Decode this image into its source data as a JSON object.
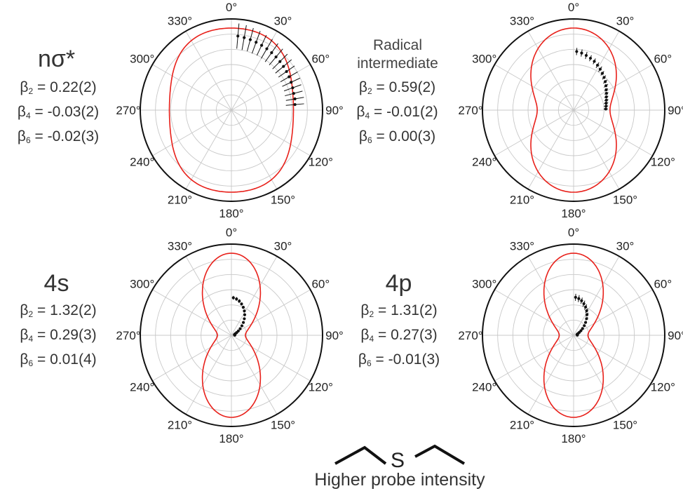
{
  "figure": {
    "footer": "Higher probe intensity",
    "molecule_atom": "S"
  },
  "panels": [
    {
      "title": "nσ*",
      "title_size": "big",
      "betas": [
        {
          "sym": "β",
          "sub": "2",
          "val": " = 0.22(2)"
        },
        {
          "sym": "β",
          "sub": "4",
          "val": " = -0.03(2)"
        },
        {
          "sym": "β",
          "sub": "6",
          "val": " = -0.02(3)"
        }
      ]
    },
    {
      "title": "Radical intermediate",
      "title_lines": [
        "Radical",
        "intermediate"
      ],
      "title_size": "small",
      "betas": [
        {
          "sym": "β",
          "sub": "2",
          "val": " = 0.59(2)"
        },
        {
          "sym": "β",
          "sub": "4",
          "val": " = -0.01(2)"
        },
        {
          "sym": "β",
          "sub": "6",
          "val": " = 0.00(3)"
        }
      ]
    },
    {
      "title": "4s",
      "title_size": "big",
      "betas": [
        {
          "sym": "β",
          "sub": "2",
          "val": " = 1.32(2)"
        },
        {
          "sym": "β",
          "sub": "4",
          "val": " = 0.29(3)"
        },
        {
          "sym": "β",
          "sub": "6",
          "val": " = 0.01(4)"
        }
      ]
    },
    {
      "title": "4p",
      "title_size": "big",
      "betas": [
        {
          "sym": "β",
          "sub": "2",
          "val": " = 1.31(2)"
        },
        {
          "sym": "β",
          "sub": "4",
          "val": " = 0.27(3)"
        },
        {
          "sym": "β",
          "sub": "6",
          "val": " = -0.01(3)"
        }
      ]
    }
  ],
  "chart_data": [
    {
      "type": "polar-line",
      "angle_ticks": [
        "0°",
        "30°",
        "60°",
        "90°",
        "120°",
        "150°",
        "180°",
        "210°",
        "240°",
        "270°",
        "300°",
        "330°"
      ],
      "theta_unit": "deg",
      "rings": 6,
      "fit": {
        "beta2": 0.22,
        "beta4": -0.03,
        "beta6": -0.02,
        "color": "#e8201a"
      },
      "points": [
        {
          "theta": 5,
          "r": 1.06,
          "err": 0.18
        },
        {
          "theta": 10,
          "r": 1.05,
          "err": 0.18
        },
        {
          "theta": 15,
          "r": 1.04,
          "err": 0.17
        },
        {
          "theta": 20,
          "r": 1.03,
          "err": 0.17
        },
        {
          "theta": 25,
          "r": 1.02,
          "err": 0.16
        },
        {
          "theta": 30,
          "r": 1.01,
          "err": 0.16
        },
        {
          "theta": 35,
          "r": 1.0,
          "err": 0.16
        },
        {
          "theta": 40,
          "r": 0.99,
          "err": 0.15
        },
        {
          "theta": 45,
          "r": 0.98,
          "err": 0.15
        },
        {
          "theta": 50,
          "r": 0.97,
          "err": 0.15
        },
        {
          "theta": 55,
          "r": 0.96,
          "err": 0.14
        },
        {
          "theta": 60,
          "r": 0.95,
          "err": 0.14
        },
        {
          "theta": 65,
          "r": 0.94,
          "err": 0.14
        },
        {
          "theta": 70,
          "r": 0.93,
          "err": 0.13
        },
        {
          "theta": 75,
          "r": 0.92,
          "err": 0.13
        },
        {
          "theta": 80,
          "r": 0.92,
          "err": 0.13
        },
        {
          "theta": 85,
          "r": 0.91,
          "err": 0.13
        }
      ]
    },
    {
      "type": "polar-line",
      "angle_ticks": [
        "0°",
        "30°",
        "60°",
        "90°",
        "120°",
        "150°",
        "180°",
        "210°",
        "240°",
        "270°",
        "300°",
        "330°"
      ],
      "theta_unit": "deg",
      "rings": 6,
      "fit": {
        "beta2": 0.59,
        "beta4": -0.01,
        "beta6": 0.0,
        "color": "#e8201a"
      },
      "points": [
        {
          "theta": 3,
          "r": 1.13,
          "err": 0.07
        },
        {
          "theta": 8,
          "r": 1.11,
          "err": 0.07
        },
        {
          "theta": 13,
          "r": 1.08,
          "err": 0.07
        },
        {
          "theta": 18,
          "r": 1.05,
          "err": 0.06
        },
        {
          "theta": 23,
          "r": 1.02,
          "err": 0.06
        },
        {
          "theta": 28,
          "r": 0.98,
          "err": 0.06
        },
        {
          "theta": 33,
          "r": 0.94,
          "err": 0.06
        },
        {
          "theta": 38,
          "r": 0.9,
          "err": 0.05
        },
        {
          "theta": 43,
          "r": 0.86,
          "err": 0.05
        },
        {
          "theta": 48,
          "r": 0.82,
          "err": 0.05
        },
        {
          "theta": 53,
          "r": 0.78,
          "err": 0.05
        },
        {
          "theta": 58,
          "r": 0.74,
          "err": 0.04
        },
        {
          "theta": 63,
          "r": 0.71,
          "err": 0.04
        },
        {
          "theta": 68,
          "r": 0.68,
          "err": 0.04
        },
        {
          "theta": 73,
          "r": 0.66,
          "err": 0.04
        },
        {
          "theta": 78,
          "r": 0.64,
          "err": 0.04
        },
        {
          "theta": 83,
          "r": 0.63,
          "err": 0.04
        },
        {
          "theta": 88,
          "r": 0.62,
          "err": 0.04
        }
      ]
    },
    {
      "type": "polar-line",
      "angle_ticks": [
        "0°",
        "30°",
        "60°",
        "90°",
        "120°",
        "150°",
        "180°",
        "210°",
        "240°",
        "270°",
        "300°",
        "330°"
      ],
      "theta_unit": "deg",
      "rings": 6,
      "fit": {
        "beta2": 1.32,
        "beta4": 0.29,
        "beta6": 0.01,
        "color": "#e8201a"
      },
      "points": [
        {
          "theta": 3,
          "r": 1.2,
          "err": 0.06
        },
        {
          "theta": 8,
          "r": 1.17,
          "err": 0.06
        },
        {
          "theta": 13,
          "r": 1.12,
          "err": 0.06
        },
        {
          "theta": 18,
          "r": 1.05,
          "err": 0.05
        },
        {
          "theta": 23,
          "r": 0.97,
          "err": 0.05
        },
        {
          "theta": 28,
          "r": 0.88,
          "err": 0.05
        },
        {
          "theta": 33,
          "r": 0.78,
          "err": 0.04
        },
        {
          "theta": 38,
          "r": 0.67,
          "err": 0.04
        },
        {
          "theta": 43,
          "r": 0.56,
          "err": 0.03
        },
        {
          "theta": 48,
          "r": 0.45,
          "err": 0.03
        },
        {
          "theta": 53,
          "r": 0.35,
          "err": 0.02
        },
        {
          "theta": 58,
          "r": 0.26,
          "err": 0.02
        },
        {
          "theta": 63,
          "r": 0.19,
          "err": 0.01
        },
        {
          "theta": 68,
          "r": 0.14,
          "err": 0.01
        },
        {
          "theta": 73,
          "r": 0.11,
          "err": 0.01
        },
        {
          "theta": 78,
          "r": 0.1,
          "err": 0.01
        },
        {
          "theta": 83,
          "r": 0.1,
          "err": 0.01
        },
        {
          "theta": 88,
          "r": 0.11,
          "err": 0.01
        }
      ]
    },
    {
      "type": "polar-line",
      "angle_ticks": [
        "0°",
        "30°",
        "60°",
        "90°",
        "120°",
        "150°",
        "180°",
        "210°",
        "240°",
        "270°",
        "300°",
        "330°"
      ],
      "theta_unit": "deg",
      "rings": 6,
      "fit": {
        "beta2": 1.31,
        "beta4": 0.27,
        "beta6": -0.01,
        "color": "#e8201a"
      },
      "points": [
        {
          "theta": 3,
          "r": 1.19,
          "err": 0.11
        },
        {
          "theta": 8,
          "r": 1.16,
          "err": 0.11
        },
        {
          "theta": 13,
          "r": 1.11,
          "err": 0.1
        },
        {
          "theta": 18,
          "r": 1.04,
          "err": 0.1
        },
        {
          "theta": 23,
          "r": 0.96,
          "err": 0.09
        },
        {
          "theta": 28,
          "r": 0.87,
          "err": 0.08
        },
        {
          "theta": 33,
          "r": 0.77,
          "err": 0.07
        },
        {
          "theta": 38,
          "r": 0.66,
          "err": 0.06
        },
        {
          "theta": 43,
          "r": 0.55,
          "err": 0.05
        },
        {
          "theta": 48,
          "r": 0.45,
          "err": 0.04
        },
        {
          "theta": 53,
          "r": 0.35,
          "err": 0.03
        },
        {
          "theta": 58,
          "r": 0.27,
          "err": 0.03
        },
        {
          "theta": 63,
          "r": 0.2,
          "err": 0.02
        },
        {
          "theta": 68,
          "r": 0.15,
          "err": 0.02
        },
        {
          "theta": 73,
          "r": 0.12,
          "err": 0.01
        },
        {
          "theta": 78,
          "r": 0.11,
          "err": 0.01
        },
        {
          "theta": 83,
          "r": 0.11,
          "err": 0.01
        },
        {
          "theta": 88,
          "r": 0.12,
          "err": 0.01
        }
      ]
    }
  ]
}
